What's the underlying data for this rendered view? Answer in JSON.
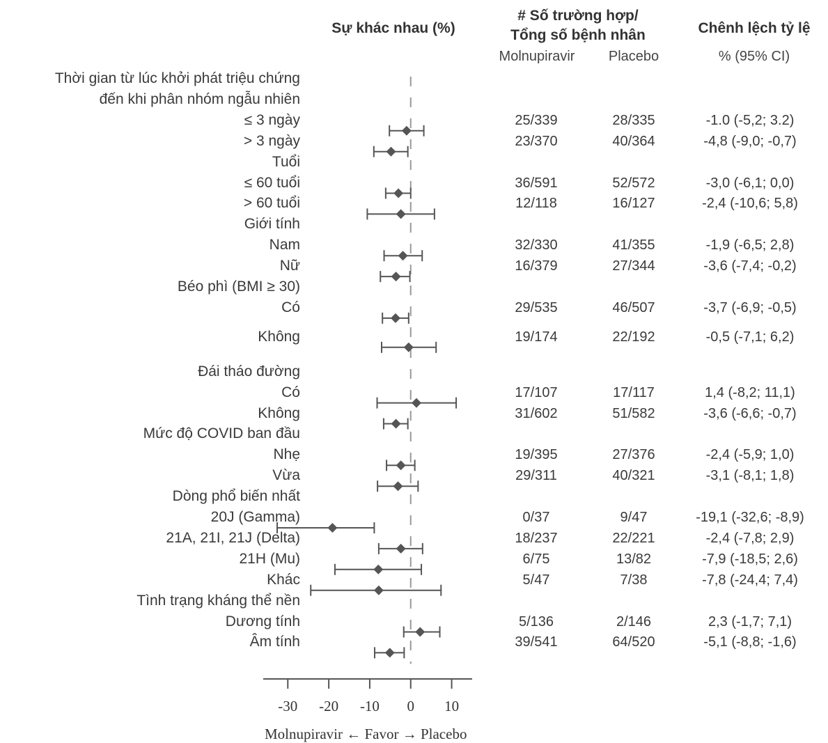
{
  "headers": {
    "diff": "Sự khác nhau (%)",
    "cases_line1": "# Số trường hợp/",
    "cases_line2": "Tổng số bệnh nhân",
    "molnupiravir": "Molnupiravir",
    "placebo": "Placebo",
    "ratio": "Chênh lệch tỷ lệ",
    "ratio_sub": "% (95% CI)"
  },
  "x_caption": "Molnupiravir ← Favor → Placebo",
  "colors": {
    "marker": "#555555",
    "axis": "#555555",
    "ref_line": "#999999",
    "text": "#3a3a3a"
  },
  "chart_data": {
    "type": "forest",
    "xlim": [
      -36,
      15
    ],
    "xticks": [
      -30,
      -20,
      -10,
      0,
      10
    ],
    "xtick_labels": [
      "-30",
      "-20",
      "-10",
      "0",
      "10"
    ],
    "reference_line": 0,
    "rows": [
      {
        "label": "Thời gian từ lúc khởi phát triệu chứng",
        "header": true
      },
      {
        "label": "đến khi phân nhóm ngẫu nhiên",
        "header": true
      },
      {
        "label": "≤ 3 ngày",
        "mol": "25/339",
        "pla": "28/335",
        "ci_text": "-1.0 (-5,2; 3.2)",
        "est": -1.0,
        "lo": -5.2,
        "hi": 3.2
      },
      {
        "label": "> 3 ngày",
        "mol": "23/370",
        "pla": "40/364",
        "ci_text": "-4,8 (-9,0; -0,7)",
        "est": -4.8,
        "lo": -9.0,
        "hi": -0.7
      },
      {
        "label": "Tuổi",
        "header": true
      },
      {
        "label": "≤ 60 tuổi",
        "mol": "36/591",
        "pla": "52/572",
        "ci_text": "-3,0 (-6,1; 0,0)",
        "est": -3.0,
        "lo": -6.1,
        "hi": 0.0
      },
      {
        "label": "> 60 tuổi",
        "mol": "12/118",
        "pla": "16/127",
        "ci_text": "-2,4 (-10,6; 5,8)",
        "est": -2.4,
        "lo": -10.6,
        "hi": 5.8
      },
      {
        "label": "Giới tính",
        "header": true
      },
      {
        "label": "Nam",
        "mol": "32/330",
        "pla": "41/355",
        "ci_text": "-1,9 (-6,5; 2,8)",
        "est": -1.9,
        "lo": -6.5,
        "hi": 2.8
      },
      {
        "label": "Nữ",
        "mol": "16/379",
        "pla": "27/344",
        "ci_text": "-3,6 (-7,4; -0,2)",
        "est": -3.6,
        "lo": -7.4,
        "hi": -0.2
      },
      {
        "label": "Béo phì (BMI ≥ 30)",
        "header": true
      },
      {
        "label": "Có",
        "mol": "29/535",
        "pla": "46/507",
        "ci_text": "-3,7 (-6,9; -0,5)",
        "est": -3.7,
        "lo": -6.9,
        "hi": -0.5
      },
      {
        "label": "Không",
        "mol": "19/174",
        "pla": "22/192",
        "ci_text": "-0,5 (-7,1; 6,2)",
        "est": -0.5,
        "lo": -7.1,
        "hi": 6.2
      },
      {
        "label": "Đái tháo đường",
        "header": true
      },
      {
        "label": "Có",
        "mol": "17/107",
        "pla": "17/117",
        "ci_text": "1,4 (-8,2; 11,1)",
        "est": 1.4,
        "lo": -8.2,
        "hi": 11.1
      },
      {
        "label": "Không",
        "mol": "31/602",
        "pla": "51/582",
        "ci_text": "-3,6 (-6,6; -0,7)",
        "est": -3.6,
        "lo": -6.6,
        "hi": -0.7
      },
      {
        "label": "Mức độ COVID ban đầu",
        "header": true
      },
      {
        "label": "Nhẹ",
        "mol": "19/395",
        "pla": "27/376",
        "ci_text": "-2,4 (-5,9; 1,0)",
        "est": -2.4,
        "lo": -5.9,
        "hi": 1.0
      },
      {
        "label": "Vừa",
        "mol": "29/311",
        "pla": "40/321",
        "ci_text": "-3,1 (-8,1; 1,8)",
        "est": -3.1,
        "lo": -8.1,
        "hi": 1.8
      },
      {
        "label": "Dòng phổ biến nhất",
        "header": true
      },
      {
        "label": "20J (Gamma)",
        "mol": "0/37",
        "pla": "9/47",
        "ci_text": "-19,1 (-32,6; -8,9)",
        "est": -19.1,
        "lo": -32.6,
        "hi": -8.9
      },
      {
        "label": "21A, 21I, 21J (Delta)",
        "mol": "18/237",
        "pla": "22/221",
        "ci_text": "-2,4 (-7,8; 2,9)",
        "est": -2.4,
        "lo": -7.8,
        "hi": 2.9
      },
      {
        "label": "21H (Mu)",
        "mol": "6/75",
        "pla": "13/82",
        "ci_text": "-7,9 (-18,5; 2,6)",
        "est": -7.9,
        "lo": -18.5,
        "hi": 2.6
      },
      {
        "label": "Khác",
        "mol": "5/47",
        "pla": "7/38",
        "ci_text": "-7,8 (-24,4; 7,4)",
        "est": -7.8,
        "lo": -24.4,
        "hi": 7.4
      },
      {
        "label": "Tình trạng kháng thể nền",
        "header": true
      },
      {
        "label": "Dương tính",
        "mol": "5/136",
        "pla": "2/146",
        "ci_text": "2,3 (-1,7; 7,1)",
        "est": 2.3,
        "lo": -1.7,
        "hi": 7.1
      },
      {
        "label": "Âm tính",
        "mol": "39/541",
        "pla": "64/520",
        "ci_text": "-5,1 (-8,8; -1,6)",
        "est": -5.1,
        "lo": -8.8,
        "hi": -1.6
      }
    ]
  }
}
